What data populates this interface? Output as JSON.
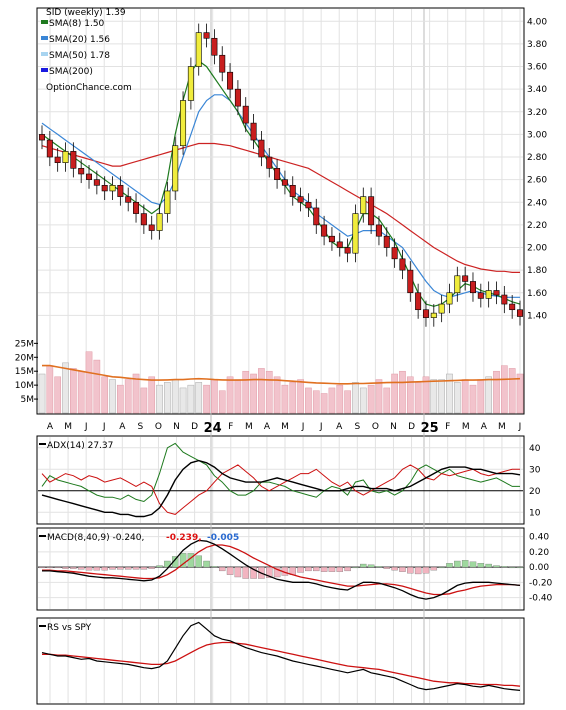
{
  "legend": {
    "title": "SID (weekly) 1.39",
    "items": [
      {
        "label": "SMA(8) 1.50",
        "color": "#1e7a1e"
      },
      {
        "label": "SMA(20) 1.56",
        "color": "#3a86d6"
      },
      {
        "label": "SMA(50) 1.78",
        "color": "#a8d4f0"
      },
      {
        "label": "SMA(200)",
        "color": "#1a1ae0"
      }
    ],
    "watermark": "OptionChance.com"
  },
  "chart_data": [
    {
      "type": "candlestick",
      "title": "SID (weekly) 1.39",
      "ylim": [
        1.2,
        4.1
      ],
      "yticks": [
        "4.00",
        "3.80",
        "3.60",
        "3.40",
        "3.20",
        "3.00",
        "2.80",
        "2.60",
        "2.40",
        "2.20",
        "2.00",
        "1.80",
        "1.60",
        "1.40"
      ],
      "x_labels": [
        "A",
        "M",
        "J",
        "J",
        "A",
        "S",
        "O",
        "N",
        "D",
        "24",
        "F",
        "M",
        "A",
        "M",
        "J",
        "J",
        "A",
        "S",
        "O",
        "N",
        "D",
        "25",
        "F",
        "M",
        "A",
        "M",
        "J"
      ],
      "close": [
        2.95,
        2.8,
        2.75,
        2.85,
        2.7,
        2.65,
        2.6,
        2.55,
        2.5,
        2.55,
        2.45,
        2.4,
        2.3,
        2.2,
        2.15,
        2.3,
        2.5,
        2.9,
        3.3,
        3.6,
        3.9,
        3.85,
        3.7,
        3.55,
        3.4,
        3.25,
        3.1,
        2.95,
        2.8,
        2.7,
        2.6,
        2.55,
        2.45,
        2.4,
        2.35,
        2.2,
        2.1,
        2.05,
        2.0,
        1.95,
        2.3,
        2.45,
        2.2,
        2.1,
        2.0,
        1.9,
        1.8,
        1.6,
        1.45,
        1.38,
        1.42,
        1.5,
        1.6,
        1.75,
        1.7,
        1.6,
        1.55,
        1.62,
        1.58,
        1.5,
        1.45,
        1.39
      ],
      "sma8": [
        3.0,
        2.95,
        2.9,
        2.85,
        2.8,
        2.75,
        2.7,
        2.65,
        2.6,
        2.55,
        2.5,
        2.45,
        2.4,
        2.35,
        2.3,
        2.35,
        2.6,
        3.0,
        3.3,
        3.55,
        3.65,
        3.6,
        3.5,
        3.4,
        3.3,
        3.2,
        3.05,
        2.95,
        2.85,
        2.75,
        2.65,
        2.55,
        2.45,
        2.4,
        2.35,
        2.25,
        2.15,
        2.05,
        2.0,
        2.0,
        2.15,
        2.3,
        2.3,
        2.25,
        2.15,
        2.05,
        1.9,
        1.75,
        1.6,
        1.5,
        1.48,
        1.5,
        1.55,
        1.62,
        1.68,
        1.66,
        1.62,
        1.6,
        1.58,
        1.55,
        1.52,
        1.5
      ],
      "sma20": [
        3.1,
        3.05,
        3.0,
        2.95,
        2.9,
        2.85,
        2.8,
        2.75,
        2.7,
        2.65,
        2.6,
        2.55,
        2.5,
        2.45,
        2.4,
        2.38,
        2.45,
        2.6,
        2.8,
        3.0,
        3.2,
        3.3,
        3.35,
        3.35,
        3.3,
        3.2,
        3.1,
        3.0,
        2.9,
        2.8,
        2.7,
        2.6,
        2.5,
        2.45,
        2.4,
        2.3,
        2.25,
        2.2,
        2.15,
        2.1,
        2.12,
        2.15,
        2.15,
        2.15,
        2.1,
        2.05,
        2.0,
        1.9,
        1.8,
        1.7,
        1.62,
        1.58,
        1.56,
        1.58,
        1.6,
        1.62,
        1.6,
        1.58,
        1.57,
        1.56,
        1.56,
        1.56
      ],
      "sma50": [
        2.9,
        2.88,
        2.86,
        2.84,
        2.82,
        2.8,
        2.78,
        2.76,
        2.74,
        2.72,
        2.72,
        2.74,
        2.76,
        2.78,
        2.8,
        2.82,
        2.84,
        2.86,
        2.88,
        2.9,
        2.92,
        2.92,
        2.92,
        2.91,
        2.9,
        2.88,
        2.86,
        2.84,
        2.82,
        2.8,
        2.78,
        2.76,
        2.74,
        2.72,
        2.7,
        2.66,
        2.62,
        2.58,
        2.54,
        2.5,
        2.46,
        2.42,
        2.38,
        2.34,
        2.3,
        2.25,
        2.2,
        2.15,
        2.1,
        2.05,
        2.0,
        1.96,
        1.92,
        1.88,
        1.85,
        1.83,
        1.81,
        1.8,
        1.79,
        1.79,
        1.78,
        1.78
      ]
    },
    {
      "type": "bar",
      "title": "Volume",
      "ylim": [
        0,
        28
      ],
      "yticks": [
        "25M",
        "20M",
        "15M",
        "10M",
        "5M"
      ],
      "values": [
        14,
        17,
        13,
        18,
        16,
        15,
        22,
        19,
        13,
        12,
        10,
        12,
        14,
        9,
        13,
        10,
        11,
        12,
        9,
        10,
        11,
        10,
        12,
        8,
        13,
        12,
        15,
        14,
        16,
        15,
        13,
        10,
        11,
        12,
        9,
        8,
        7,
        9,
        10,
        8,
        11,
        9,
        10,
        12,
        9,
        14,
        15,
        13,
        11,
        13,
        12,
        12,
        14,
        11,
        12,
        10,
        12,
        13,
        15,
        17,
        16,
        14
      ],
      "avg": [
        17,
        17,
        16.5,
        16,
        15.5,
        15,
        14.5,
        14,
        13.5,
        13,
        12.8,
        12.5,
        12.2,
        12,
        11.8,
        11.8,
        11.9,
        12,
        12,
        12.2,
        12.3,
        12.2,
        12,
        11.9,
        11.8,
        11.8,
        11.9,
        12,
        12,
        11.9,
        11.8,
        11.6,
        11.4,
        11.2,
        11,
        10.8,
        10.7,
        10.6,
        10.5,
        10.5,
        10.6,
        10.6,
        10.7,
        10.8,
        10.9,
        11,
        11,
        11.1,
        11.2,
        11.3,
        11.4,
        11.5,
        11.6,
        11.7,
        11.8,
        11.8,
        11.9,
        12,
        12,
        12.1,
        12.2,
        12.3
      ]
    },
    {
      "type": "line",
      "title": "ADX(14) 27.37",
      "ylim": [
        5,
        45
      ],
      "yticks": [
        "40",
        "30",
        "20",
        "10"
      ],
      "adx": [
        18,
        17,
        16,
        15,
        14,
        13,
        12,
        11,
        10,
        10,
        9,
        9,
        8,
        8,
        9,
        12,
        18,
        25,
        30,
        33,
        34,
        33,
        31,
        28,
        26,
        25,
        24,
        24,
        24,
        25,
        26,
        25,
        24,
        23,
        22,
        21,
        20,
        20,
        20,
        21,
        22,
        22,
        21,
        21,
        21,
        20,
        21,
        22,
        24,
        26,
        28,
        30,
        31,
        31,
        31,
        30,
        30,
        29,
        28,
        28,
        28,
        27.4
      ],
      "plus_di": [
        22,
        27,
        25,
        24,
        23,
        22,
        20,
        18,
        17,
        17,
        16,
        18,
        16,
        15,
        18,
        28,
        40,
        42,
        38,
        36,
        34,
        32,
        27,
        24,
        20,
        18,
        18,
        20,
        24,
        24,
        23,
        22,
        20,
        19,
        18,
        17,
        20,
        22,
        21,
        18,
        24,
        25,
        20,
        19,
        20,
        18,
        20,
        24,
        30,
        32,
        30,
        28,
        30,
        27,
        26,
        25,
        24,
        25,
        26,
        24,
        22,
        22
      ],
      "minus_di": [
        28,
        24,
        26,
        28,
        27,
        25,
        27,
        26,
        24,
        25,
        26,
        24,
        22,
        24,
        22,
        14,
        10,
        9,
        12,
        15,
        18,
        20,
        24,
        28,
        30,
        32,
        29,
        26,
        22,
        20,
        22,
        24,
        26,
        28,
        28,
        30,
        27,
        24,
        22,
        24,
        20,
        18,
        20,
        22,
        24,
        26,
        30,
        32,
        30,
        26,
        25,
        28,
        27,
        28,
        29,
        30,
        28,
        27,
        28,
        29,
        30,
        30
      ]
    },
    {
      "type": "line",
      "title": "MACD(8,40,9) -0.240,",
      "annotations": [
        "-0.239,",
        "-0.005"
      ],
      "ylim": [
        -0.55,
        0.5
      ],
      "yticks": [
        "0.40",
        "0.20",
        "0.00",
        "-0.20",
        "-0.40"
      ],
      "macd": [
        -0.05,
        -0.05,
        -0.06,
        -0.07,
        -0.08,
        -0.1,
        -0.12,
        -0.13,
        -0.14,
        -0.14,
        -0.15,
        -0.16,
        -0.17,
        -0.18,
        -0.17,
        -0.12,
        -0.02,
        0.1,
        0.22,
        0.3,
        0.35,
        0.34,
        0.3,
        0.24,
        0.17,
        0.1,
        0.03,
        -0.03,
        -0.08,
        -0.12,
        -0.16,
        -0.18,
        -0.2,
        -0.2,
        -0.2,
        -0.22,
        -0.25,
        -0.27,
        -0.29,
        -0.3,
        -0.25,
        -0.2,
        -0.2,
        -0.21,
        -0.24,
        -0.27,
        -0.31,
        -0.36,
        -0.4,
        -0.42,
        -0.4,
        -0.36,
        -0.3,
        -0.24,
        -0.21,
        -0.2,
        -0.2,
        -0.2,
        -0.21,
        -0.22,
        -0.23,
        -0.24
      ],
      "signal": [
        -0.04,
        -0.04,
        -0.05,
        -0.05,
        -0.06,
        -0.07,
        -0.08,
        -0.09,
        -0.1,
        -0.11,
        -0.12,
        -0.13,
        -0.14,
        -0.15,
        -0.15,
        -0.14,
        -0.1,
        -0.04,
        0.04,
        0.12,
        0.2,
        0.26,
        0.29,
        0.29,
        0.27,
        0.23,
        0.18,
        0.12,
        0.07,
        0.02,
        -0.03,
        -0.07,
        -0.1,
        -0.13,
        -0.15,
        -0.17,
        -0.19,
        -0.21,
        -0.23,
        -0.25,
        -0.25,
        -0.24,
        -0.23,
        -0.22,
        -0.22,
        -0.23,
        -0.25,
        -0.28,
        -0.31,
        -0.34,
        -0.36,
        -0.36,
        -0.35,
        -0.32,
        -0.3,
        -0.27,
        -0.25,
        -0.24,
        -0.23,
        -0.23,
        -0.23,
        -0.24
      ]
    },
    {
      "type": "line",
      "title": "RS vs SPY",
      "ylim": [
        0,
        10
      ],
      "rs": [
        6.0,
        5.8,
        5.6,
        5.6,
        5.4,
        5.2,
        5.3,
        5.0,
        4.9,
        4.8,
        4.7,
        4.6,
        4.4,
        4.2,
        4.1,
        4.3,
        5.0,
        6.5,
        8.0,
        9.2,
        9.6,
        8.8,
        8.0,
        7.6,
        7.4,
        7.0,
        6.6,
        6.3,
        6.0,
        5.8,
        5.6,
        5.3,
        5.0,
        4.8,
        4.6,
        4.4,
        4.2,
        4.0,
        3.8,
        3.6,
        3.8,
        4.0,
        3.6,
        3.4,
        3.2,
        3.0,
        2.6,
        2.2,
        1.8,
        1.6,
        1.7,
        1.9,
        2.1,
        2.3,
        2.2,
        2.0,
        1.9,
        2.1,
        1.9,
        1.7,
        1.6,
        1.5
      ],
      "rs_ma": [
        5.8,
        5.8,
        5.7,
        5.7,
        5.6,
        5.5,
        5.4,
        5.3,
        5.2,
        5.1,
        5.0,
        4.9,
        4.8,
        4.7,
        4.6,
        4.6,
        4.7,
        5.0,
        5.5,
        6.0,
        6.5,
        6.9,
        7.1,
        7.2,
        7.2,
        7.1,
        7.0,
        6.8,
        6.6,
        6.4,
        6.2,
        6.0,
        5.8,
        5.6,
        5.4,
        5.2,
        5.0,
        4.8,
        4.6,
        4.4,
        4.3,
        4.2,
        4.1,
        4.0,
        3.8,
        3.6,
        3.4,
        3.2,
        3.0,
        2.8,
        2.6,
        2.5,
        2.4,
        2.4,
        2.3,
        2.3,
        2.2,
        2.2,
        2.2,
        2.1,
        2.1,
        2.0
      ]
    }
  ]
}
